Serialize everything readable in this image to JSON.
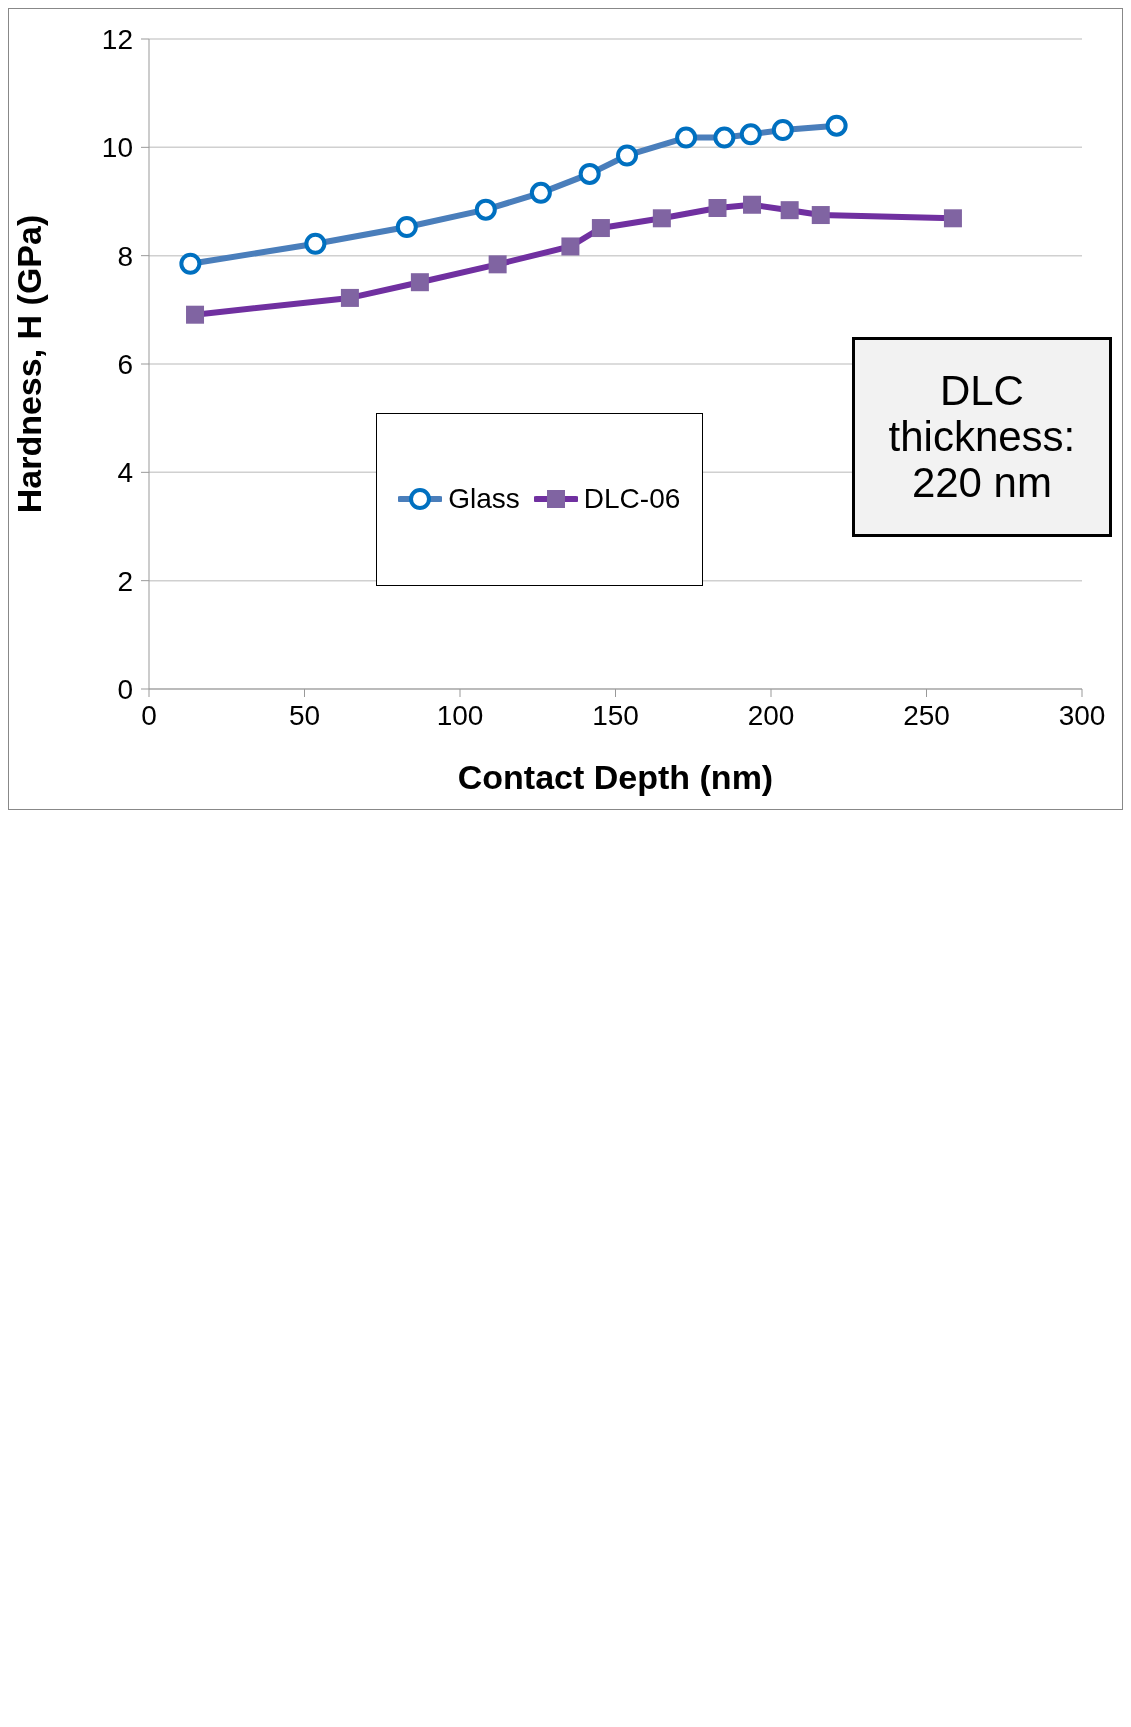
{
  "chart_data": {
    "type": "line",
    "xlabel": "Contact Depth (nm)",
    "ylabel": "Hardness, H (GPa)",
    "xlim": [
      0,
      300
    ],
    "xticks": [
      0,
      50,
      100,
      150,
      200,
      250,
      300
    ],
    "ylim": [
      0,
      12
    ],
    "yticks": [
      0,
      2,
      4,
      6,
      8,
      10,
      12
    ],
    "grid": "y",
    "legend": "bottom",
    "annotations": [
      "DLC thickness: 220 nm"
    ],
    "series": [
      {
        "name": "Glass",
        "color": "#4a7ebb",
        "marker": "circle",
        "x": [
          13.3,
          53.5,
          82.9,
          108.3,
          126,
          141.7,
          153.7,
          172.7,
          185,
          193.5,
          203.8,
          221.1
        ],
        "values": [
          7.85,
          8.22,
          8.53,
          8.85,
          9.16,
          9.51,
          9.85,
          10.18,
          10.18,
          10.24,
          10.32,
          10.4
        ]
      },
      {
        "name": "DLC-06",
        "color": "#7030a0",
        "marker": "square",
        "x": [
          14.8,
          64.6,
          87.1,
          112.1,
          135.5,
          145.3,
          164.9,
          182.8,
          193.9,
          206,
          216,
          258.5
        ],
        "values": [
          6.91,
          7.22,
          7.51,
          7.84,
          8.17,
          8.51,
          8.69,
          8.88,
          8.94,
          8.84,
          8.75,
          8.69
        ]
      }
    ]
  }
}
